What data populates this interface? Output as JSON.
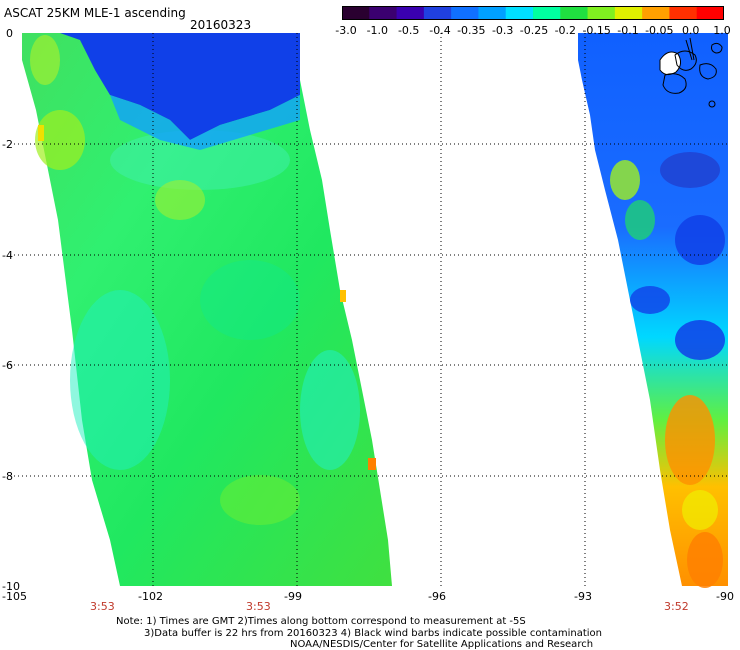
{
  "header": {
    "title": "ASCAT 25KM MLE-1 ascending",
    "date": "20160323"
  },
  "colorbar": {
    "labels": [
      "-3.0",
      "-1.0",
      "-0.5",
      "-0.4",
      "-0.35",
      "-0.3",
      "-0.25",
      "-0.2",
      "-0.15",
      "-0.1",
      "-0.05",
      "0.0",
      "1.0"
    ],
    "colors": [
      "#2a0030",
      "#3b0070",
      "#3a00b0",
      "#2040e0",
      "#1070ff",
      "#00a0ff",
      "#00e0ff",
      "#00ffa0",
      "#20e040",
      "#80f020",
      "#e0f000",
      "#ffa000",
      "#ff3000",
      "#ff0000"
    ]
  },
  "axes": {
    "x_ticks": [
      "-105",
      "-102",
      "-99",
      "-96",
      "-93",
      "-90"
    ],
    "y_ticks": [
      "0",
      "-2",
      "-4",
      "-6",
      "-8",
      "-10"
    ],
    "x_range": [
      -105,
      -90
    ],
    "y_range": [
      -10,
      0
    ]
  },
  "times": [
    "3:53",
    "3:53",
    "3:52"
  ],
  "notes": {
    "line1": "Note: 1) Times are GMT 2)Times along bottom correspond to measurement at -5S",
    "line2": "3)Data buffer is 22 hrs from 20160323 4) Black wind barbs indicate possible contamination",
    "line3": "NOAA/NESDIS/Center for Satellite Applications and Research"
  }
}
